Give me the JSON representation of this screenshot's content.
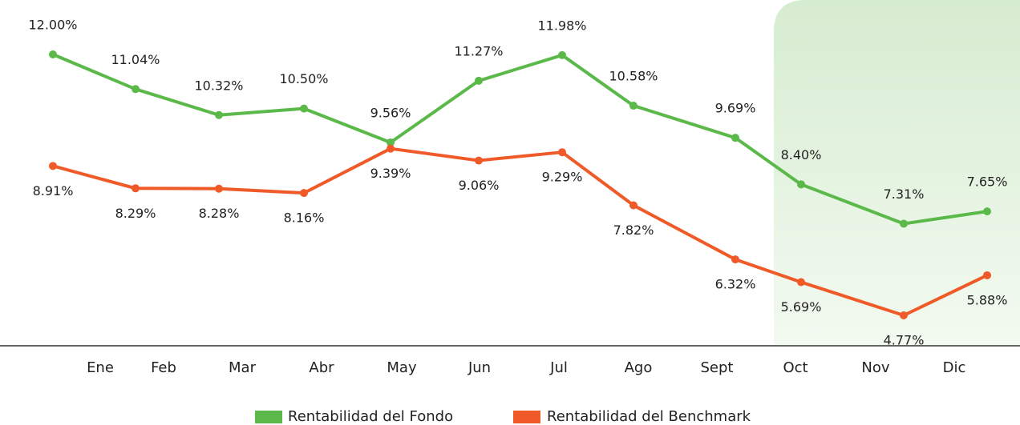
{
  "chart_data": {
    "type": "line",
    "categories": [
      "Ene",
      "Feb",
      "Mar",
      "Abr",
      "May",
      "Jun",
      "Jul",
      "Ago",
      "Sept",
      "Oct",
      "Nov",
      "Dic"
    ],
    "series": [
      {
        "name": "Rentabilidad del Fondo",
        "color": "#5bb94a",
        "values": [
          12.0,
          11.04,
          10.32,
          10.5,
          9.56,
          11.27,
          11.98,
          10.58,
          9.69,
          8.4,
          7.31,
          7.65
        ],
        "value_labels": [
          "12.00%",
          "11.04%",
          "10.32%",
          "10.50%",
          "9.56%",
          "11.27%",
          "11.98%",
          "10.58%",
          "9.69%",
          "8.40%",
          "7.31%",
          "7.65%"
        ]
      },
      {
        "name": "Rentabilidad del Benchmark",
        "color": "#f05a28",
        "values": [
          8.91,
          8.29,
          8.28,
          8.16,
          9.39,
          9.06,
          9.29,
          7.82,
          6.32,
          5.69,
          4.77,
          5.88
        ],
        "value_labels": [
          "8.91%",
          "8.29%",
          "8.28%",
          "8.16%",
          "9.39%",
          "9.06%",
          "9.29%",
          "7.82%",
          "6.32%",
          "5.69%",
          "4.77%",
          "5.88%"
        ]
      }
    ]
  }
}
